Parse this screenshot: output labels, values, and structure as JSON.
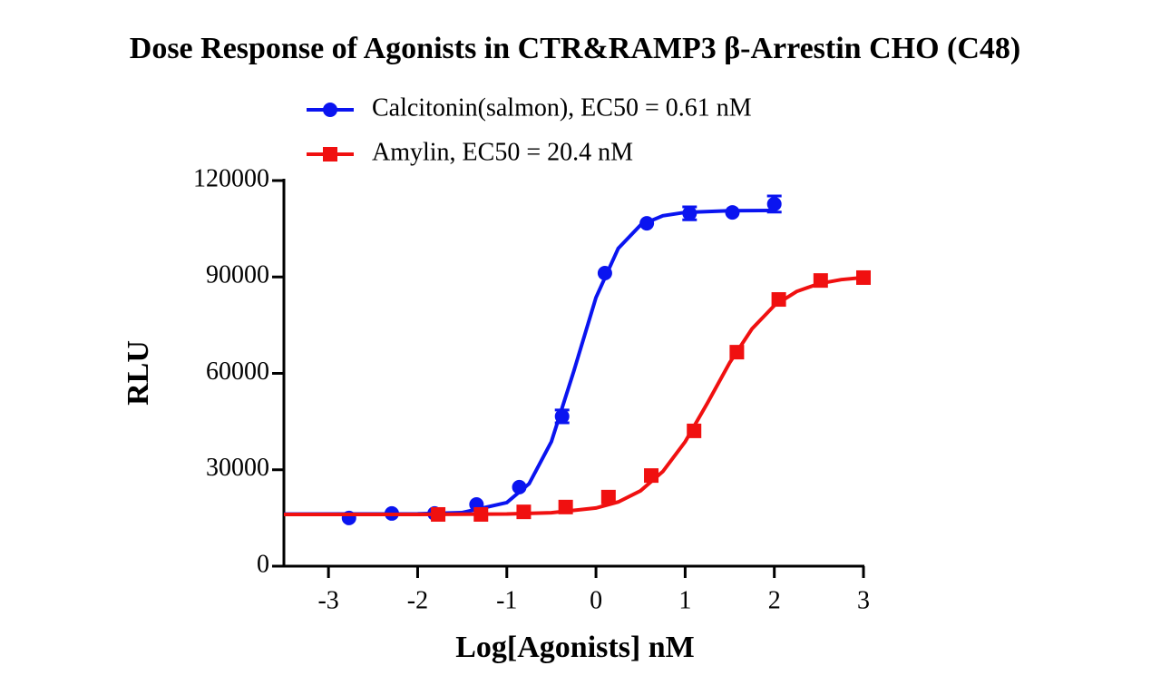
{
  "chart_data": {
    "type": "dose-response",
    "title": "Dose Response of Agonists in CTR&RAMP3 β-Arrestin CHO (C48)",
    "x_label": "Log[Agonists] nM",
    "y_label": "RLU",
    "xlim": [
      -3.5,
      3
    ],
    "xticks": [
      -3,
      -2,
      -1,
      0,
      1,
      2,
      3
    ],
    "ylim": [
      0,
      120000
    ],
    "yticks": [
      0,
      30000,
      60000,
      90000,
      120000
    ],
    "legend": "top-left",
    "series": [
      {
        "name": "Calcitonin(salmon), EC50 = 0.61 nM",
        "color": "#0a14f0",
        "marker": "circle",
        "x": [
          -2.77,
          -2.29,
          -1.81,
          -1.34,
          -0.86,
          -0.38,
          0.1,
          0.57,
          1.05,
          1.53,
          2.0
        ],
        "values": [
          15000,
          16400,
          16400,
          19200,
          24600,
          46600,
          91200,
          106700,
          109800,
          110100,
          112700
        ],
        "errors": [
          null,
          null,
          null,
          null,
          null,
          2000,
          null,
          null,
          2000,
          null,
          2500
        ],
        "fit": {
          "x": [
            -3.5,
            -2,
            -1.5,
            -1,
            -0.75,
            -0.5,
            -0.25,
            0,
            0.25,
            0.5,
            0.75,
            1,
            1.5,
            2
          ],
          "values": [
            16200,
            16260,
            16670,
            19780,
            25650,
            38750,
            60560,
            83600,
            98900,
            106150,
            109040,
            110100,
            110620,
            110700
          ]
        }
      },
      {
        "name": "Amylin, EC50 = 20.4 nM",
        "color": "#f01010",
        "marker": "square",
        "x": [
          -1.77,
          -1.29,
          -0.81,
          -0.34,
          0.14,
          0.62,
          1.1,
          1.58,
          2.05,
          2.52,
          3.0
        ],
        "values": [
          16100,
          16100,
          16900,
          18400,
          21500,
          28200,
          42100,
          66600,
          83000,
          88900,
          89800
        ],
        "errors": [
          null,
          null,
          null,
          null,
          null,
          null,
          null,
          null,
          null,
          null,
          null
        ],
        "fit": {
          "x": [
            -3.5,
            -2,
            -1,
            -0.5,
            0,
            0.25,
            0.5,
            0.75,
            1,
            1.25,
            1.5,
            1.75,
            2,
            2.25,
            2.5,
            2.75,
            3
          ],
          "values": [
            16100,
            16110,
            16230,
            16610,
            18100,
            19980,
            23450,
            29460,
            38710,
            50740,
            63340,
            73860,
            81100,
            85480,
            87900,
            89170,
            89830
          ]
        }
      }
    ]
  }
}
